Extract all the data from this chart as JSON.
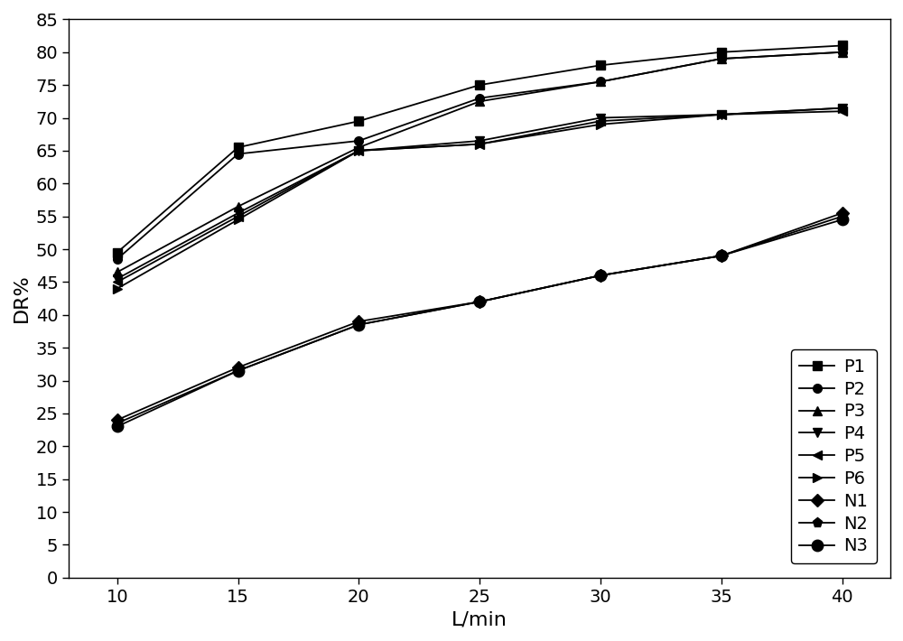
{
  "x": [
    10,
    15,
    20,
    25,
    30,
    35,
    40
  ],
  "series": {
    "P1": [
      49.5,
      65.5,
      69.5,
      75.0,
      78.0,
      80.0,
      81.0
    ],
    "P2": [
      48.5,
      64.5,
      66.5,
      73.0,
      75.5,
      79.0,
      80.0
    ],
    "P3": [
      46.5,
      56.5,
      65.5,
      72.5,
      75.5,
      79.0,
      80.0
    ],
    "P4": [
      45.5,
      55.5,
      65.0,
      66.5,
      70.0,
      70.5,
      71.5
    ],
    "P5": [
      45.0,
      55.0,
      65.0,
      66.0,
      69.5,
      70.5,
      71.0
    ],
    "P6": [
      44.0,
      54.5,
      65.0,
      66.0,
      69.0,
      70.5,
      71.5
    ],
    "N1": [
      24.0,
      32.0,
      39.0,
      42.0,
      46.0,
      49.0,
      55.5
    ],
    "N2": [
      23.5,
      31.5,
      38.5,
      42.0,
      46.0,
      49.0,
      55.0
    ],
    "N3": [
      23.0,
      31.5,
      38.5,
      42.0,
      46.0,
      49.0,
      54.5
    ]
  },
  "markers": {
    "P1": "s",
    "P2": "o",
    "P3": "^",
    "P4": "v",
    "P5": "<",
    "P6": ">",
    "N1": "D",
    "N2": "p",
    "N3": "o"
  },
  "marker_sizes": {
    "P1": 7,
    "P2": 7,
    "P3": 7,
    "P4": 7,
    "P5": 7,
    "P6": 7,
    "N1": 7,
    "N2": 8,
    "N3": 9
  },
  "color": "#000000",
  "xlabel": "L/min",
  "ylabel": "DR%",
  "xlim": [
    8,
    42
  ],
  "ylim": [
    0,
    85
  ],
  "yticks": [
    0,
    5,
    10,
    15,
    20,
    25,
    30,
    35,
    40,
    45,
    50,
    55,
    60,
    65,
    70,
    75,
    80,
    85
  ],
  "xticks": [
    10,
    15,
    20,
    25,
    30,
    35,
    40
  ],
  "legend_loc": "lower right",
  "background_color": "#ffffff",
  "figsize": [
    10.0,
    7.1
  ],
  "dpi": 100,
  "xlabel_fontsize": 16,
  "ylabel_fontsize": 16,
  "tick_labelsize": 14,
  "legend_fontsize": 14,
  "linewidth": 1.3
}
